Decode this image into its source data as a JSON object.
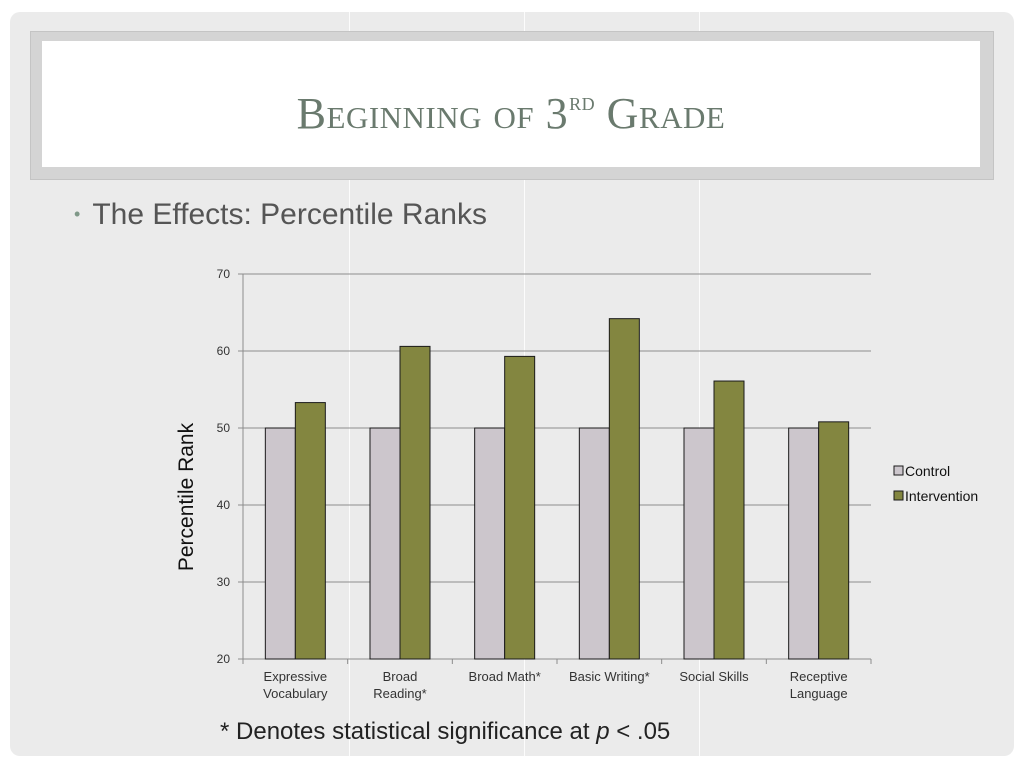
{
  "slide": {
    "title": {
      "main": "Beginning of 3",
      "sup": "rd",
      "end": " Grade"
    },
    "bullet": "The Effects: Percentile Ranks",
    "footnote": {
      "before": "* Denotes statistical significance at ",
      "italic": "p",
      "after": " < .05"
    }
  },
  "chart_data": {
    "type": "bar",
    "title": "",
    "xlabel": "",
    "ylabel": "Percentile Rank",
    "ylim": [
      20,
      70
    ],
    "yticks": [
      20,
      30,
      40,
      50,
      60,
      70
    ],
    "grid": true,
    "legend": "right",
    "categories": [
      [
        "Expressive",
        "Vocabulary"
      ],
      [
        "Broad",
        "Reading*"
      ],
      [
        "Broad Math*"
      ],
      [
        "Basic Writing*"
      ],
      [
        "Social Skills"
      ],
      [
        "Receptive",
        "Language"
      ]
    ],
    "series": [
      {
        "name": "Control",
        "color": "#ccc6cc",
        "values": [
          50,
          50,
          50,
          50,
          50,
          50
        ]
      },
      {
        "name": "Intervention",
        "color": "#838640",
        "values": [
          53.3,
          60.6,
          59.3,
          64.2,
          56.1,
          50.8
        ]
      }
    ]
  }
}
